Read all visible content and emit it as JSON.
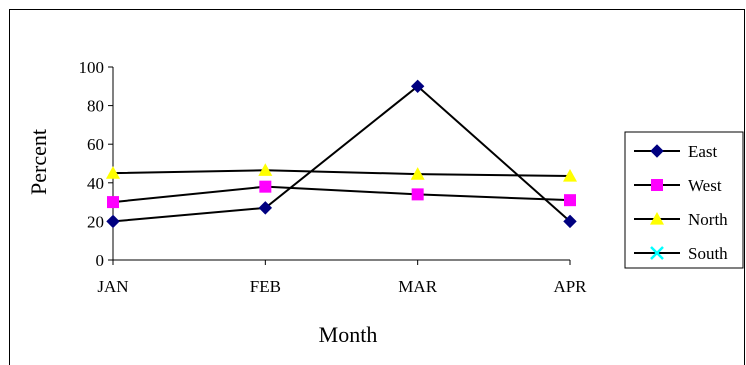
{
  "chart_data": {
    "type": "line",
    "title": "",
    "xlabel": "Month",
    "ylabel": "Percent",
    "categories": [
      "JAN",
      "FEB",
      "MAR",
      "APR"
    ],
    "ylim": [
      0,
      100
    ],
    "yticks": [
      0,
      20,
      40,
      60,
      80,
      100
    ],
    "grid": false,
    "legend_position": "right",
    "series": [
      {
        "name": "East",
        "values": [
          20,
          27,
          90,
          20
        ],
        "color": "#000080",
        "marker": "diamond"
      },
      {
        "name": "West",
        "values": [
          30,
          38,
          34,
          31
        ],
        "color": "#ff00ff",
        "marker": "square"
      },
      {
        "name": "North",
        "values": [
          45,
          46.5,
          44.5,
          43.5
        ],
        "color": "#ffff00",
        "marker": "triangle"
      },
      {
        "name": "South",
        "values": [
          null,
          null,
          null,
          null
        ],
        "color": "#00ffff",
        "marker": "x"
      }
    ]
  }
}
